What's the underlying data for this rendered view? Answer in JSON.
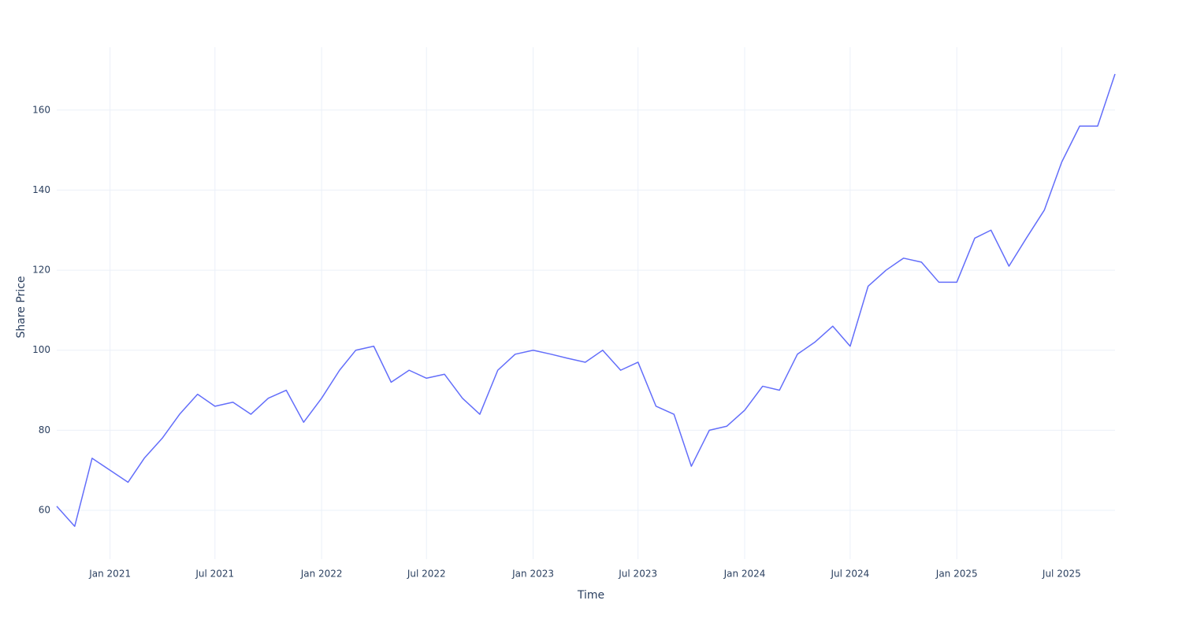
{
  "chart_data": {
    "type": "line",
    "xlabel": "Time",
    "ylabel": "Share Price",
    "x": [
      "2020-10",
      "2020-11",
      "2020-12",
      "2021-01",
      "2021-02",
      "2021-03",
      "2021-04",
      "2021-05",
      "2021-06",
      "2021-07",
      "2021-08",
      "2021-09",
      "2021-10",
      "2021-11",
      "2021-12",
      "2022-01",
      "2022-02",
      "2022-03",
      "2022-04",
      "2022-05",
      "2022-06",
      "2022-07",
      "2022-08",
      "2022-09",
      "2022-10",
      "2022-11",
      "2022-12",
      "2023-01",
      "2023-02",
      "2023-03",
      "2023-04",
      "2023-05",
      "2023-06",
      "2023-07",
      "2023-08",
      "2023-09",
      "2023-10",
      "2023-11",
      "2023-12",
      "2024-01",
      "2024-02",
      "2024-03",
      "2024-04",
      "2024-05",
      "2024-06",
      "2024-07",
      "2024-08",
      "2024-09",
      "2024-10",
      "2024-11",
      "2024-12",
      "2025-01",
      "2025-02",
      "2025-03",
      "2025-04",
      "2025-05",
      "2025-06",
      "2025-07",
      "2025-08",
      "2025-09",
      "2025-10"
    ],
    "series": [
      {
        "name": "Share Price",
        "color": "#636efa",
        "values": [
          61,
          56,
          73,
          70,
          67,
          73,
          78,
          84,
          89,
          86,
          87,
          84,
          88,
          90,
          82,
          88,
          95,
          100,
          101,
          92,
          95,
          93,
          94,
          88,
          84,
          95,
          99,
          100,
          99,
          98,
          97,
          100,
          95,
          97,
          86,
          84,
          71,
          80,
          81,
          85,
          91,
          90,
          99,
          102,
          106,
          101,
          116,
          120,
          123,
          122,
          117,
          117,
          128,
          130,
          121,
          128,
          135,
          147,
          156,
          156,
          169
        ]
      }
    ],
    "xlim": [
      "2020-10",
      "2025-10"
    ],
    "xticks": [
      {
        "value": "2021-01",
        "label": "Jan 2021"
      },
      {
        "value": "2021-07",
        "label": "Jul 2021"
      },
      {
        "value": "2022-01",
        "label": "Jan 2022"
      },
      {
        "value": "2022-07",
        "label": "Jul 2022"
      },
      {
        "value": "2023-01",
        "label": "Jan 2023"
      },
      {
        "value": "2023-07",
        "label": "Jul 2023"
      },
      {
        "value": "2024-01",
        "label": "Jan 2024"
      },
      {
        "value": "2024-07",
        "label": "Jul 2024"
      },
      {
        "value": "2025-01",
        "label": "Jan 2025"
      },
      {
        "value": "2025-07",
        "label": "Jul 2025"
      }
    ],
    "ylim": [
      47.8,
      175.7
    ],
    "yticks": [
      60,
      80,
      100,
      120,
      140,
      160
    ],
    "grid": true
  }
}
